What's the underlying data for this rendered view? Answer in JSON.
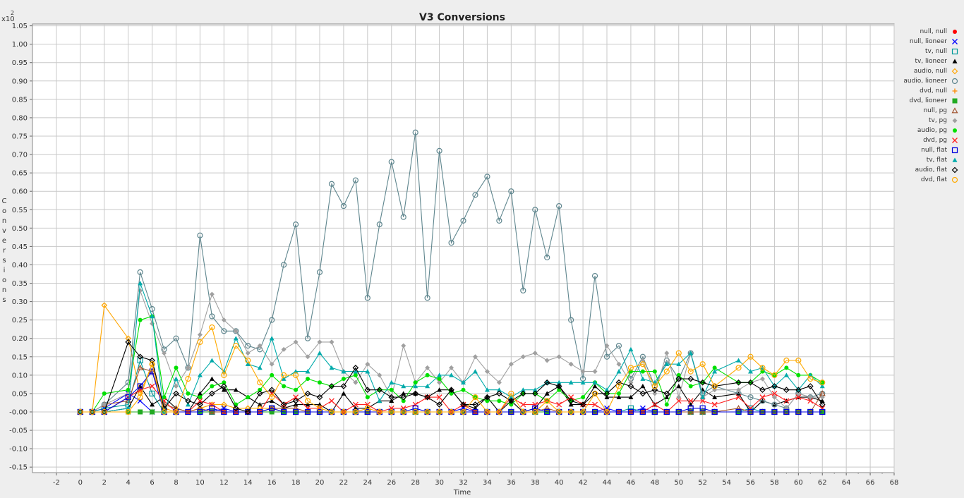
{
  "chart_data": {
    "type": "line",
    "title": "V3 Conversions",
    "xlabel": "Time",
    "ylabel": "Conversions",
    "y_scale_label": "x10",
    "y_scale_exp": "2",
    "xlim": [
      -4,
      68
    ],
    "ylim": [
      -0.165,
      1.055
    ],
    "x_ticks": [
      -2,
      0,
      2,
      4,
      6,
      8,
      10,
      12,
      14,
      16,
      18,
      20,
      22,
      24,
      26,
      28,
      30,
      32,
      34,
      36,
      38,
      40,
      42,
      44,
      46,
      48,
      50,
      52,
      54,
      56,
      58,
      60,
      62,
      64,
      66,
      68
    ],
    "y_ticks": [
      -0.15,
      -0.1,
      -0.05,
      0.0,
      0.05,
      0.1,
      0.15,
      0.2,
      0.25,
      0.3,
      0.35,
      0.4,
      0.45,
      0.5,
      0.55,
      0.6,
      0.65,
      0.7,
      0.75,
      0.8,
      0.85,
      0.9,
      0.95,
      1.0,
      1.05
    ],
    "y_tick_labels": [
      "-0.15",
      "-0.10",
      "-0.05",
      "-0.00",
      "0.05",
      "0.10",
      "0.15",
      "0.20",
      "0.25",
      "0.30",
      "0.35",
      "0.40",
      "0.45",
      "0.50",
      "0.55",
      "0.60",
      "0.65",
      "0.70",
      "0.75",
      "0.80",
      "0.85",
      "0.90",
      "0.95",
      "1.00",
      "1.05"
    ],
    "x": [
      0,
      1,
      2,
      4,
      5,
      6,
      7,
      8,
      9,
      10,
      11,
      12,
      13,
      14,
      15,
      16,
      17,
      18,
      19,
      20,
      21,
      22,
      23,
      24,
      25,
      26,
      27,
      28,
      29,
      30,
      31,
      32,
      33,
      34,
      35,
      36,
      37,
      38,
      39,
      40,
      41,
      42,
      43,
      44,
      45,
      46,
      47,
      48,
      49,
      50,
      51,
      52,
      53,
      55,
      56,
      57,
      58,
      59,
      60,
      61,
      62
    ],
    "series": [
      {
        "name": "null, null",
        "color": "#ff0000",
        "marker": "dot",
        "values": [
          0.0,
          0.0,
          0.0,
          0.0,
          0.0,
          0.0,
          0.0,
          0.0,
          0.0,
          0.0,
          0.0,
          0.0,
          0.0,
          0.0,
          0.0,
          0.0,
          0.0,
          0.0,
          0.0,
          0.0,
          0.0,
          0.0,
          0.0,
          0.0,
          0.0,
          0.0,
          0.0,
          0.0,
          0.0,
          0.0,
          0.0,
          0.0,
          0.0,
          0.0,
          0.0,
          0.0,
          0.0,
          0.0,
          0.0,
          0.0,
          0.0,
          0.0,
          0.0,
          0.0,
          0.0,
          0.0,
          0.0,
          0.0,
          0.0,
          0.0,
          0.0,
          0.0,
          0.0,
          0.0,
          0.0,
          0.0,
          0.0,
          0.0,
          0.0,
          0.0,
          0.0
        ]
      },
      {
        "name": "null, lioneer",
        "color": "#0000ff",
        "marker": "x",
        "values": [
          0.0,
          0.0,
          0.01,
          0.05,
          0.03,
          0.0,
          0.0,
          0.0,
          0.0,
          0.0,
          0.0,
          0.01,
          0.0,
          0.0,
          0.0,
          0.01,
          0.0,
          0.0,
          0.0,
          0.0,
          0.0,
          0.0,
          0.0,
          0.0,
          0.0,
          0.0,
          0.0,
          0.0,
          0.0,
          0.0,
          0.0,
          0.01,
          0.0,
          0.0,
          0.0,
          0.0,
          0.0,
          0.0,
          0.0,
          0.0,
          0.0,
          0.0,
          0.0,
          0.01,
          0.0,
          0.0,
          0.01,
          0.0,
          0.0,
          0.0,
          0.0,
          0.0,
          0.0,
          0.0,
          0.0,
          0.0,
          0.0,
          0.0,
          0.0,
          0.0,
          0.0
        ]
      },
      {
        "name": "tv, null",
        "color": "#009999",
        "marker": "square",
        "values": [
          0.0,
          0.0,
          0.01,
          0.02,
          0.14,
          0.05,
          0.0,
          0.0,
          0.0,
          0.0,
          0.0,
          0.0,
          0.0,
          0.0,
          0.0,
          0.01,
          0.0,
          0.0,
          0.0,
          0.0,
          0.0,
          0.0,
          0.0,
          0.0,
          0.0,
          0.0,
          0.0,
          0.0,
          0.0,
          0.0,
          0.0,
          0.0,
          0.0,
          0.0,
          0.0,
          0.0,
          0.0,
          0.0,
          0.0,
          0.0,
          0.0,
          0.0,
          0.0,
          0.0,
          0.0,
          0.01,
          0.0,
          0.0,
          0.0,
          0.0,
          0.0,
          0.0,
          0.0,
          0.0,
          0.01,
          0.0,
          0.0,
          0.0,
          0.0,
          0.0,
          0.0
        ]
      },
      {
        "name": "tv, lioneer",
        "color": "#000000",
        "marker": "triangle",
        "values": [
          0.0,
          0.0,
          0.0,
          0.01,
          0.07,
          0.02,
          0.04,
          0.01,
          0.0,
          0.05,
          0.09,
          0.06,
          0.06,
          0.04,
          0.02,
          0.03,
          0.01,
          0.02,
          0.02,
          0.02,
          0.0,
          0.05,
          0.01,
          0.01,
          0.03,
          0.03,
          0.05,
          0.05,
          0.04,
          0.06,
          0.06,
          0.02,
          0.01,
          0.04,
          0.0,
          0.03,
          0.0,
          0.01,
          0.05,
          0.07,
          0.02,
          0.02,
          0.07,
          0.04,
          0.04,
          0.04,
          0.07,
          0.02,
          0.04,
          0.07,
          0.02,
          0.06,
          0.04,
          0.05,
          0.0,
          0.03,
          0.02,
          0.03,
          0.04,
          0.04,
          0.03
        ]
      },
      {
        "name": "audio, null",
        "color": "#ffa500",
        "marker": "diamond",
        "values": [
          0.0,
          0.0,
          0.29,
          0.2,
          0.05,
          0.13,
          0.01,
          0.0,
          0.0,
          0.01,
          0.02,
          0.02,
          0.01,
          0.01,
          0.01,
          0.01,
          0.0,
          0.0,
          0.0,
          0.0,
          0.0,
          0.0,
          0.0,
          0.0,
          0.0,
          0.0,
          0.0,
          0.0,
          0.0,
          0.0,
          0.0,
          0.0,
          0.0,
          0.0,
          0.0,
          0.0,
          0.0,
          0.0,
          0.0,
          0.0,
          0.0,
          0.0,
          0.0,
          0.0,
          0.0,
          0.0,
          0.0,
          0.0,
          0.0,
          0.0,
          0.0,
          0.0,
          0.0,
          0.0,
          0.0,
          0.0,
          0.0,
          0.0,
          0.0,
          0.0,
          0.0
        ]
      },
      {
        "name": "audio, lioneer",
        "color": "#5f868e",
        "marker": "circle",
        "values": [
          0.0,
          0.0,
          0.02,
          0.08,
          0.38,
          0.28,
          0.17,
          0.2,
          0.12,
          0.48,
          0.26,
          0.22,
          0.22,
          0.18,
          0.17,
          0.25,
          0.4,
          0.51,
          0.2,
          0.38,
          0.62,
          0.56,
          0.63,
          0.31,
          0.51,
          0.68,
          0.53,
          0.76,
          0.31,
          0.71,
          0.46,
          0.52,
          0.59,
          0.64,
          0.52,
          0.6,
          0.33,
          0.55,
          0.42,
          0.56,
          0.25,
          0.09,
          0.37,
          0.15,
          0.18,
          0.09,
          0.15,
          0.07,
          0.14,
          0.09,
          0.16,
          0.05,
          0.07,
          0.05,
          0.04,
          0.03,
          0.02,
          0.01,
          0.05,
          0.04,
          0.05
        ]
      },
      {
        "name": "dvd, null",
        "color": "#ff8800",
        "marker": "plus",
        "values": [
          0.0,
          0.0,
          0.0,
          0.0,
          0.0,
          0.0,
          0.0,
          0.0,
          0.0,
          0.0,
          0.0,
          0.0,
          0.0,
          0.0,
          0.0,
          0.0,
          0.0,
          0.0,
          0.0,
          0.0,
          0.0,
          0.0,
          0.0,
          0.0,
          0.0,
          0.0,
          0.0,
          0.0,
          0.0,
          0.0,
          0.0,
          0.0,
          0.0,
          0.0,
          0.0,
          0.0,
          0.0,
          0.0,
          0.0,
          0.0,
          0.0,
          0.0,
          0.0,
          0.0,
          0.0,
          0.0,
          0.0,
          0.0,
          0.0,
          0.0,
          0.0,
          0.0,
          0.0,
          0.0,
          0.0,
          0.0,
          0.0,
          0.0,
          0.0,
          0.0,
          0.0
        ]
      },
      {
        "name": "dvd, lioneer",
        "color": "#22aa22",
        "marker": "fsquare",
        "values": [
          0.0,
          0.0,
          0.0,
          0.0,
          0.0,
          0.0,
          0.0,
          0.0,
          0.0,
          0.0,
          0.0,
          0.0,
          0.0,
          0.0,
          0.0,
          0.0,
          0.0,
          0.0,
          0.0,
          0.0,
          0.0,
          0.0,
          0.0,
          0.0,
          0.0,
          0.0,
          0.0,
          0.0,
          0.0,
          0.0,
          0.0,
          0.0,
          0.0,
          0.0,
          0.0,
          0.0,
          0.0,
          0.0,
          0.0,
          0.0,
          0.0,
          0.0,
          0.0,
          0.0,
          0.0,
          0.0,
          0.0,
          0.0,
          0.0,
          0.0,
          0.0,
          0.0,
          0.0,
          0.0,
          0.0,
          0.0,
          0.0,
          0.0,
          0.0,
          0.0,
          0.0
        ]
      },
      {
        "name": "null, pg",
        "color": "#a0522d",
        "marker": "otriangle",
        "values": [
          0.0,
          0.0,
          0.02,
          0.03,
          0.12,
          0.11,
          0.02,
          0.01,
          0.0,
          0.01,
          0.0,
          0.0,
          0.0,
          0.0,
          0.0,
          0.01,
          0.01,
          0.01,
          0.0,
          0.0,
          0.0,
          0.0,
          0.0,
          0.0,
          0.0,
          0.0,
          0.0,
          0.0,
          0.0,
          0.0,
          0.0,
          0.0,
          0.0,
          0.0,
          0.0,
          0.0,
          0.0,
          0.0,
          0.01,
          0.0,
          0.0,
          0.0,
          0.0,
          0.0,
          0.0,
          0.0,
          0.0,
          0.0,
          0.0,
          0.0,
          0.0,
          0.0,
          0.0,
          0.01,
          0.0,
          0.0,
          0.0,
          0.0,
          0.0,
          0.0,
          0.05
        ]
      },
      {
        "name": "tv, pg",
        "color": "#a0a0a0",
        "marker": "fdiamond",
        "values": [
          0.0,
          0.0,
          0.02,
          0.05,
          0.33,
          0.24,
          0.16,
          0.07,
          0.12,
          0.21,
          0.32,
          0.25,
          0.22,
          0.16,
          0.18,
          0.13,
          0.17,
          0.19,
          0.15,
          0.19,
          0.19,
          0.11,
          0.08,
          0.13,
          0.1,
          0.04,
          0.18,
          0.08,
          0.12,
          0.08,
          0.12,
          0.08,
          0.15,
          0.11,
          0.08,
          0.13,
          0.15,
          0.16,
          0.14,
          0.15,
          0.13,
          0.11,
          0.11,
          0.18,
          0.13,
          0.08,
          0.14,
          0.05,
          0.16,
          0.04,
          0.16,
          0.04,
          0.06,
          0.06,
          0.08,
          0.09,
          0.04,
          0.01,
          0.05,
          0.04,
          0.04
        ]
      },
      {
        "name": "audio, pg",
        "color": "#00e000",
        "marker": "dot",
        "values": [
          0.0,
          0.0,
          0.05,
          0.06,
          0.25,
          0.26,
          0.04,
          0.12,
          0.05,
          0.04,
          0.07,
          0.08,
          0.02,
          0.04,
          0.06,
          0.1,
          0.07,
          0.06,
          0.09,
          0.08,
          0.07,
          0.09,
          0.1,
          0.04,
          0.06,
          0.06,
          0.03,
          0.08,
          0.1,
          0.09,
          0.05,
          0.06,
          0.04,
          0.03,
          0.03,
          0.02,
          0.05,
          0.05,
          0.03,
          0.06,
          0.03,
          0.04,
          0.08,
          0.05,
          0.05,
          0.11,
          0.11,
          0.11,
          0.02,
          0.1,
          0.07,
          0.08,
          0.12,
          0.08,
          0.08,
          0.11,
          0.1,
          0.12,
          0.1,
          0.1,
          0.08
        ]
      },
      {
        "name": "dvd, pg",
        "color": "#ff2020",
        "marker": "x",
        "values": [
          0.0,
          0.0,
          0.0,
          0.04,
          0.06,
          0.07,
          0.03,
          0.0,
          0.0,
          0.03,
          0.02,
          0.0,
          0.0,
          0.0,
          0.0,
          0.05,
          0.02,
          0.04,
          0.01,
          0.01,
          0.03,
          0.0,
          0.02,
          0.02,
          0.0,
          0.01,
          0.01,
          0.02,
          0.04,
          0.04,
          0.0,
          0.02,
          0.0,
          0.0,
          0.0,
          0.04,
          0.02,
          0.02,
          0.03,
          0.02,
          0.04,
          0.02,
          0.02,
          0.0,
          0.0,
          0.0,
          0.0,
          0.02,
          0.0,
          0.03,
          0.03,
          0.03,
          0.02,
          0.04,
          0.01,
          0.04,
          0.05,
          0.03,
          0.04,
          0.03,
          0.01
        ]
      },
      {
        "name": "null, flat",
        "color": "#0000dd",
        "marker": "square",
        "values": [
          0.0,
          0.0,
          0.0,
          0.04,
          0.07,
          0.11,
          0.0,
          0.0,
          0.0,
          0.0,
          0.01,
          0.0,
          0.0,
          0.0,
          0.0,
          0.01,
          0.0,
          0.0,
          0.0,
          0.0,
          0.0,
          0.0,
          0.0,
          0.0,
          0.0,
          0.0,
          0.0,
          0.01,
          0.0,
          0.0,
          0.0,
          0.0,
          0.0,
          0.0,
          0.0,
          0.0,
          0.0,
          0.01,
          0.0,
          0.0,
          0.0,
          0.0,
          0.0,
          0.0,
          0.0,
          0.0,
          0.0,
          0.0,
          0.0,
          0.0,
          0.01,
          0.01,
          0.0,
          0.0,
          0.0,
          0.0,
          0.0,
          0.0,
          0.0,
          0.0,
          0.0
        ]
      },
      {
        "name": "tv, flat",
        "color": "#00aaaa",
        "marker": "ftriangle",
        "values": [
          0.0,
          0.0,
          0.0,
          0.01,
          0.35,
          0.26,
          0.0,
          0.09,
          0.02,
          0.1,
          0.14,
          0.11,
          0.2,
          0.13,
          0.12,
          0.2,
          0.09,
          0.11,
          0.11,
          0.16,
          0.12,
          0.11,
          0.11,
          0.11,
          0.03,
          0.08,
          0.07,
          0.07,
          0.07,
          0.1,
          0.1,
          0.08,
          0.11,
          0.06,
          0.06,
          0.04,
          0.06,
          0.06,
          0.08,
          0.08,
          0.08,
          0.08,
          0.08,
          0.06,
          0.11,
          0.17,
          0.09,
          0.08,
          0.13,
          0.13,
          0.16,
          0.04,
          0.11,
          0.14,
          0.11,
          0.12,
          0.07,
          0.1,
          0.06,
          0.1,
          0.07
        ]
      },
      {
        "name": "audio, flat",
        "color": "#000000",
        "marker": "odiamond",
        "values": [
          0.0,
          0.0,
          0.0,
          0.19,
          0.15,
          0.14,
          0.01,
          0.05,
          0.03,
          0.02,
          0.05,
          0.07,
          0.01,
          0.0,
          0.05,
          0.06,
          0.02,
          0.03,
          0.05,
          0.04,
          0.07,
          0.07,
          0.12,
          0.06,
          0.06,
          0.04,
          0.04,
          0.05,
          0.04,
          0.02,
          0.06,
          0.02,
          0.02,
          0.04,
          0.05,
          0.03,
          0.05,
          0.05,
          0.08,
          0.07,
          0.03,
          0.02,
          0.05,
          0.05,
          0.08,
          0.07,
          0.05,
          0.06,
          0.05,
          0.09,
          0.09,
          0.08,
          0.07,
          0.08,
          0.08,
          0.06,
          0.07,
          0.06,
          0.06,
          0.07,
          0.02
        ]
      },
      {
        "name": "dvd, flat",
        "color": "#ffaa00",
        "marker": "circle",
        "values": [
          0.0,
          0.0,
          0.0,
          0.0,
          0.04,
          0.13,
          0.0,
          0.0,
          0.09,
          0.19,
          0.23,
          0.1,
          0.18,
          0.14,
          0.08,
          0.04,
          0.1,
          0.1,
          0.03,
          0.01,
          0.0,
          0.0,
          0.0,
          0.01,
          0.0,
          0.0,
          0.0,
          0.0,
          0.0,
          0.0,
          0.0,
          0.0,
          0.04,
          0.0,
          0.0,
          0.05,
          0.0,
          0.0,
          0.03,
          0.0,
          0.0,
          0.0,
          0.05,
          0.0,
          0.07,
          0.12,
          0.13,
          0.07,
          0.11,
          0.16,
          0.11,
          0.13,
          0.07,
          0.12,
          0.15,
          0.12,
          0.1,
          0.14,
          0.14,
          0.09,
          0.08
        ]
      }
    ]
  }
}
